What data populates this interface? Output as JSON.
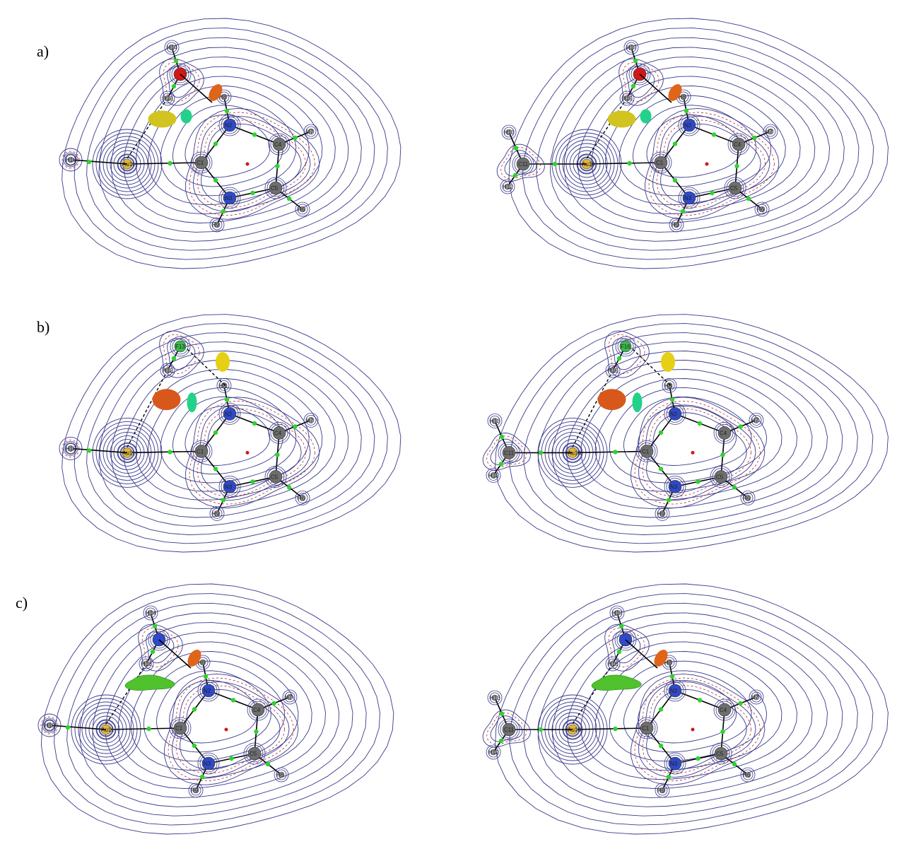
{
  "panel_labels": {
    "a": "a)",
    "b": "b)",
    "c": "c)"
  },
  "panels": [
    {
      "id": "a-left",
      "atoms": {
        "H10": "H10",
        "Au": "Au11",
        "H14": "H14",
        "H13": "H13",
        "H8": "H8",
        "H7": "H7",
        "H6": "H6",
        "H9": "H9",
        "C1": "C1",
        "N2": "N2",
        "N3": "N3",
        "C4": "C4",
        "C5": "C5"
      }
    },
    {
      "id": "a-right",
      "atoms": {
        "H13": "H13",
        "C11": "C11",
        "H12": "H12",
        "Au": "Au10",
        "H17": "H17",
        "H15": "H15",
        "H8": "H8",
        "H7": "H7",
        "H6": "H6",
        "H9": "H9",
        "C1": "C1",
        "N2": "N2",
        "N3": "N3",
        "C4": "C4",
        "C5": "C5"
      }
    },
    {
      "id": "b-left",
      "atoms": {
        "H10": "H10",
        "Au": "Au11",
        "F13": "F13",
        "H12": "H12",
        "H8": "H8",
        "H7": "H7",
        "H6": "H6",
        "H9": "H9",
        "C1": "C1",
        "N2": "N2",
        "N3": "N3",
        "C4": "C4",
        "C5": "C5"
      }
    },
    {
      "id": "b-right",
      "atoms": {
        "H13": "H13",
        "C11": "C11",
        "H12": "H12",
        "Au": "Au10",
        "F16": "F16",
        "H15": "H15",
        "H8": "H8",
        "H7": "H7",
        "H6": "H6",
        "H9": "H9",
        "C1": "C1",
        "N2": "N2",
        "N3": "N3",
        "C4": "C4",
        "C5": "C5"
      }
    },
    {
      "id": "c-left",
      "atoms": {
        "H10": "H10",
        "Au": "Au11",
        "H14": "H14",
        "H13": "H13",
        "H8": "H8",
        "H7": "H7",
        "H6": "H6",
        "H9": "H9",
        "C1": "C1",
        "N2": "N2",
        "N3": "N3",
        "C4": "C4",
        "C5": "C5"
      }
    },
    {
      "id": "c-right",
      "atoms": {
        "H13": "H13",
        "C11": "C11",
        "H12": "H12",
        "Au": "Au10",
        "H17": "H17",
        "H15": "H15",
        "H8": "H8",
        "H7": "H7",
        "H6": "H6",
        "H9": "H9",
        "C1": "C1",
        "N2": "N2",
        "N3": "N3",
        "C4": "C4",
        "C5": "C5"
      }
    }
  ],
  "colors": {
    "contour": "#3a3a8c",
    "negative_contour": "#b02a2a",
    "gold": "#e0b43a",
    "carbon": "#6e6e6e",
    "nitrogen": "#2f49c8",
    "oxygen": "#d01818",
    "fluorine": "#3cb84a",
    "hydrogen": "#a0a0a0",
    "bcp": "#2bd42b",
    "rcp": "#d01818"
  }
}
